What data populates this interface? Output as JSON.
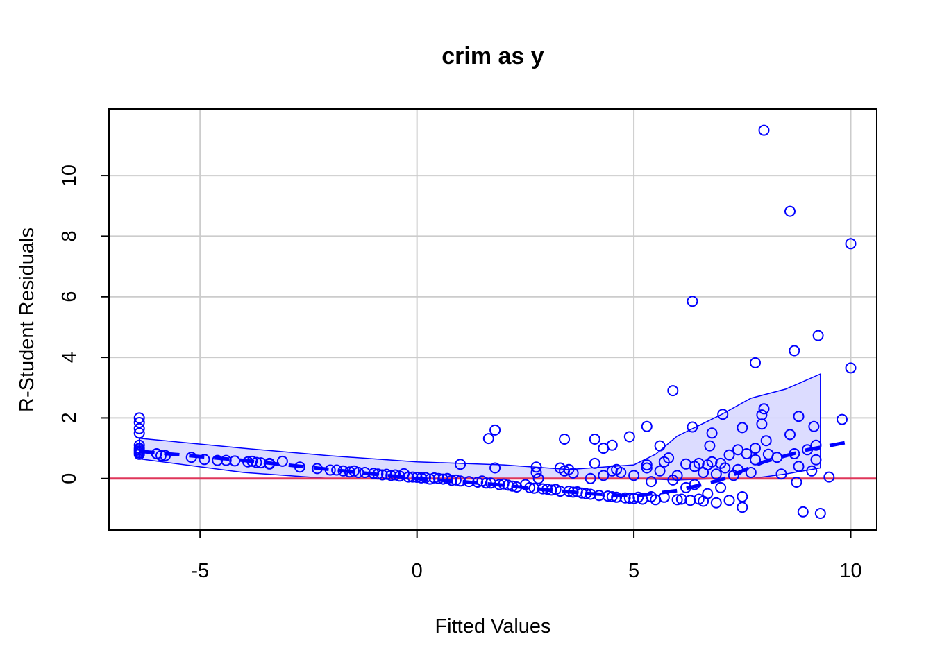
{
  "chart_data": {
    "type": "scatter",
    "title": "crim as y",
    "xlabel": "Fitted Values",
    "ylabel": "R-Student Residuals",
    "xlim": [
      -7.1,
      10.6
    ],
    "ylim": [
      -1.7,
      12.2
    ],
    "xticks": [
      -5,
      0,
      5,
      10
    ],
    "yticks": [
      0,
      2,
      4,
      6,
      8,
      10
    ],
    "xtick_labels": [
      "-5",
      "0",
      "5",
      "10"
    ],
    "ytick_labels": [
      "0",
      "2",
      "4",
      "6",
      "8",
      "10"
    ],
    "grid": true,
    "colors": {
      "points": "#0000ff",
      "band_fill": "#d8d8ff",
      "band_edge": "#0000ff",
      "trend": "#0000ff",
      "zero_line": "#df365a",
      "grid": "#cccccc"
    },
    "reference_line_y": 0,
    "points": [
      [
        -6.4,
        2.0
      ],
      [
        -6.4,
        1.85
      ],
      [
        -6.4,
        1.65
      ],
      [
        -6.4,
        1.5
      ],
      [
        -6.4,
        1.1
      ],
      [
        -6.4,
        1.0
      ],
      [
        -6.4,
        0.95
      ],
      [
        -6.4,
        0.9
      ],
      [
        -6.4,
        0.85
      ],
      [
        -6.4,
        0.8
      ],
      [
        -6.0,
        0.82
      ],
      [
        -5.9,
        0.76
      ],
      [
        -5.8,
        0.76
      ],
      [
        -5.2,
        0.7
      ],
      [
        -4.9,
        0.63
      ],
      [
        -4.6,
        0.6
      ],
      [
        -4.4,
        0.6
      ],
      [
        -4.2,
        0.58
      ],
      [
        -3.9,
        0.55
      ],
      [
        -3.8,
        0.57
      ],
      [
        -3.7,
        0.53
      ],
      [
        -3.6,
        0.52
      ],
      [
        -3.4,
        0.48
      ],
      [
        -3.4,
        0.5
      ],
      [
        -3.1,
        0.57
      ],
      [
        -2.7,
        0.38
      ],
      [
        -2.3,
        0.33
      ],
      [
        -2.0,
        0.28
      ],
      [
        -1.85,
        0.28
      ],
      [
        -1.7,
        0.25
      ],
      [
        -1.55,
        0.22
      ],
      [
        -1.45,
        0.25
      ],
      [
        -1.35,
        0.2
      ],
      [
        -1.2,
        0.2
      ],
      [
        -1.0,
        0.17
      ],
      [
        -0.9,
        0.15
      ],
      [
        -0.8,
        0.12
      ],
      [
        -0.7,
        0.14
      ],
      [
        -0.6,
        0.1
      ],
      [
        -0.5,
        0.12
      ],
      [
        -0.4,
        0.08
      ],
      [
        -0.3,
        0.16
      ],
      [
        -0.2,
        0.05
      ],
      [
        -0.1,
        0.05
      ],
      [
        0.0,
        0.04
      ],
      [
        0.1,
        0.02
      ],
      [
        0.2,
        0.03
      ],
      [
        0.3,
        -0.02
      ],
      [
        0.4,
        0.02
      ],
      [
        0.5,
        0.0
      ],
      [
        0.6,
        -0.02
      ],
      [
        0.7,
        0.0
      ],
      [
        0.8,
        -0.06
      ],
      [
        0.9,
        -0.05
      ],
      [
        1.0,
        0.47
      ],
      [
        1.0,
        -0.08
      ],
      [
        1.2,
        -0.1
      ],
      [
        1.4,
        -0.12
      ],
      [
        1.5,
        -0.08
      ],
      [
        1.6,
        -0.15
      ],
      [
        1.7,
        -0.15
      ],
      [
        1.65,
        1.32
      ],
      [
        1.8,
        1.6
      ],
      [
        1.8,
        0.35
      ],
      [
        1.9,
        -0.2
      ],
      [
        2.0,
        -0.18
      ],
      [
        2.1,
        -0.22
      ],
      [
        2.2,
        -0.25
      ],
      [
        2.3,
        -0.28
      ],
      [
        2.5,
        -0.2
      ],
      [
        2.6,
        -0.3
      ],
      [
        2.7,
        -0.32
      ],
      [
        2.75,
        0.38
      ],
      [
        2.75,
        0.2
      ],
      [
        2.8,
        0.0
      ],
      [
        2.9,
        -0.34
      ],
      [
        3.0,
        -0.35
      ],
      [
        3.1,
        -0.38
      ],
      [
        3.2,
        -0.36
      ],
      [
        3.3,
        -0.42
      ],
      [
        3.3,
        0.35
      ],
      [
        3.4,
        1.3
      ],
      [
        3.4,
        0.25
      ],
      [
        3.5,
        0.3
      ],
      [
        3.5,
        -0.42
      ],
      [
        3.6,
        -0.45
      ],
      [
        3.6,
        0.18
      ],
      [
        3.7,
        -0.44
      ],
      [
        3.8,
        -0.48
      ],
      [
        3.9,
        -0.5
      ],
      [
        4.0,
        0.0
      ],
      [
        4.0,
        -0.52
      ],
      [
        4.1,
        1.3
      ],
      [
        4.1,
        0.5
      ],
      [
        4.2,
        -0.56
      ],
      [
        4.3,
        1.0
      ],
      [
        4.3,
        0.1
      ],
      [
        4.4,
        -0.58
      ],
      [
        4.5,
        1.1
      ],
      [
        4.5,
        0.25
      ],
      [
        4.5,
        -0.6
      ],
      [
        4.6,
        0.3
      ],
      [
        4.6,
        -0.62
      ],
      [
        4.7,
        0.2
      ],
      [
        4.8,
        -0.64
      ],
      [
        4.9,
        1.38
      ],
      [
        4.9,
        -0.65
      ],
      [
        5.0,
        0.1
      ],
      [
        5.0,
        -0.66
      ],
      [
        5.1,
        -0.62
      ],
      [
        5.2,
        -0.68
      ],
      [
        5.3,
        1.72
      ],
      [
        5.3,
        0.45
      ],
      [
        5.3,
        0.35
      ],
      [
        5.4,
        -0.1
      ],
      [
        5.4,
        -0.6
      ],
      [
        5.5,
        -0.7
      ],
      [
        5.6,
        1.08
      ],
      [
        5.6,
        0.25
      ],
      [
        5.7,
        0.55
      ],
      [
        5.7,
        -0.62
      ],
      [
        5.8,
        0.68
      ],
      [
        5.9,
        2.9
      ],
      [
        5.9,
        -0.05
      ],
      [
        6.0,
        0.1
      ],
      [
        6.0,
        -0.7
      ],
      [
        6.1,
        -0.68
      ],
      [
        6.2,
        0.48
      ],
      [
        6.2,
        -0.3
      ],
      [
        6.3,
        -0.72
      ],
      [
        6.35,
        5.85
      ],
      [
        6.35,
        1.7
      ],
      [
        6.4,
        0.4
      ],
      [
        6.4,
        -0.2
      ],
      [
        6.5,
        0.5
      ],
      [
        6.5,
        -0.68
      ],
      [
        6.6,
        0.2
      ],
      [
        6.6,
        -0.75
      ],
      [
        6.7,
        0.45
      ],
      [
        6.7,
        -0.5
      ],
      [
        6.75,
        1.08
      ],
      [
        6.8,
        1.5
      ],
      [
        6.8,
        0.55
      ],
      [
        6.9,
        0.15
      ],
      [
        6.9,
        -0.8
      ],
      [
        7.0,
        0.5
      ],
      [
        7.0,
        -0.3
      ],
      [
        7.05,
        2.12
      ],
      [
        7.1,
        0.35
      ],
      [
        7.2,
        0.78
      ],
      [
        7.2,
        -0.72
      ],
      [
        7.3,
        0.1
      ],
      [
        7.4,
        0.95
      ],
      [
        7.4,
        0.3
      ],
      [
        7.5,
        1.68
      ],
      [
        7.5,
        -0.6
      ],
      [
        7.5,
        -0.95
      ],
      [
        7.6,
        0.82
      ],
      [
        7.7,
        0.2
      ],
      [
        7.8,
        3.82
      ],
      [
        7.8,
        1.0
      ],
      [
        7.8,
        0.62
      ],
      [
        7.95,
        2.1
      ],
      [
        7.95,
        1.8
      ],
      [
        8.0,
        11.5
      ],
      [
        8.0,
        2.3
      ],
      [
        8.05,
        1.25
      ],
      [
        8.1,
        0.8
      ],
      [
        8.3,
        0.7
      ],
      [
        8.4,
        0.15
      ],
      [
        8.6,
        8.82
      ],
      [
        8.6,
        1.45
      ],
      [
        8.7,
        0.82
      ],
      [
        8.7,
        4.22
      ],
      [
        8.75,
        -0.12
      ],
      [
        8.8,
        2.05
      ],
      [
        8.8,
        0.4
      ],
      [
        8.9,
        -1.1
      ],
      [
        9.0,
        0.95
      ],
      [
        9.1,
        0.25
      ],
      [
        9.15,
        1.72
      ],
      [
        9.2,
        1.1
      ],
      [
        9.2,
        0.62
      ],
      [
        9.25,
        4.72
      ],
      [
        9.3,
        -1.15
      ],
      [
        9.5,
        0.05
      ],
      [
        9.8,
        1.95
      ],
      [
        10.0,
        7.75
      ],
      [
        10.0,
        3.65
      ]
    ],
    "trend_line": [
      [
        -6.4,
        0.9
      ],
      [
        -4.0,
        0.6
      ],
      [
        -2.0,
        0.3
      ],
      [
        0.0,
        0.0
      ],
      [
        1.0,
        -0.1
      ],
      [
        2.0,
        -0.22
      ],
      [
        3.0,
        -0.38
      ],
      [
        4.0,
        -0.5
      ],
      [
        5.0,
        -0.58
      ],
      [
        6.0,
        -0.4
      ],
      [
        7.0,
        -0.05
      ],
      [
        8.0,
        0.55
      ],
      [
        9.0,
        0.95
      ],
      [
        10.0,
        1.22
      ]
    ],
    "band_upper": [
      [
        -6.4,
        1.33
      ],
      [
        -4.0,
        1.0
      ],
      [
        -2.0,
        0.75
      ],
      [
        0.0,
        0.55
      ],
      [
        2.0,
        0.45
      ],
      [
        3.5,
        0.3
      ],
      [
        5.0,
        0.45
      ],
      [
        5.5,
        0.8
      ],
      [
        6.0,
        1.4
      ],
      [
        7.0,
        2.1
      ],
      [
        7.7,
        2.65
      ],
      [
        8.5,
        2.95
      ],
      [
        9.3,
        3.45
      ]
    ],
    "band_lower": [
      [
        9.3,
        0.35
      ],
      [
        8.5,
        0.15
      ],
      [
        7.7,
        0.0
      ],
      [
        7.0,
        0.0
      ],
      [
        6.0,
        -0.05
      ],
      [
        5.0,
        0.0
      ],
      [
        4.0,
        0.0
      ],
      [
        3.0,
        0.0
      ],
      [
        2.0,
        0.0
      ],
      [
        0.0,
        0.0
      ],
      [
        -2.0,
        0.0
      ],
      [
        -4.0,
        0.2
      ],
      [
        -6.4,
        0.65
      ]
    ]
  }
}
